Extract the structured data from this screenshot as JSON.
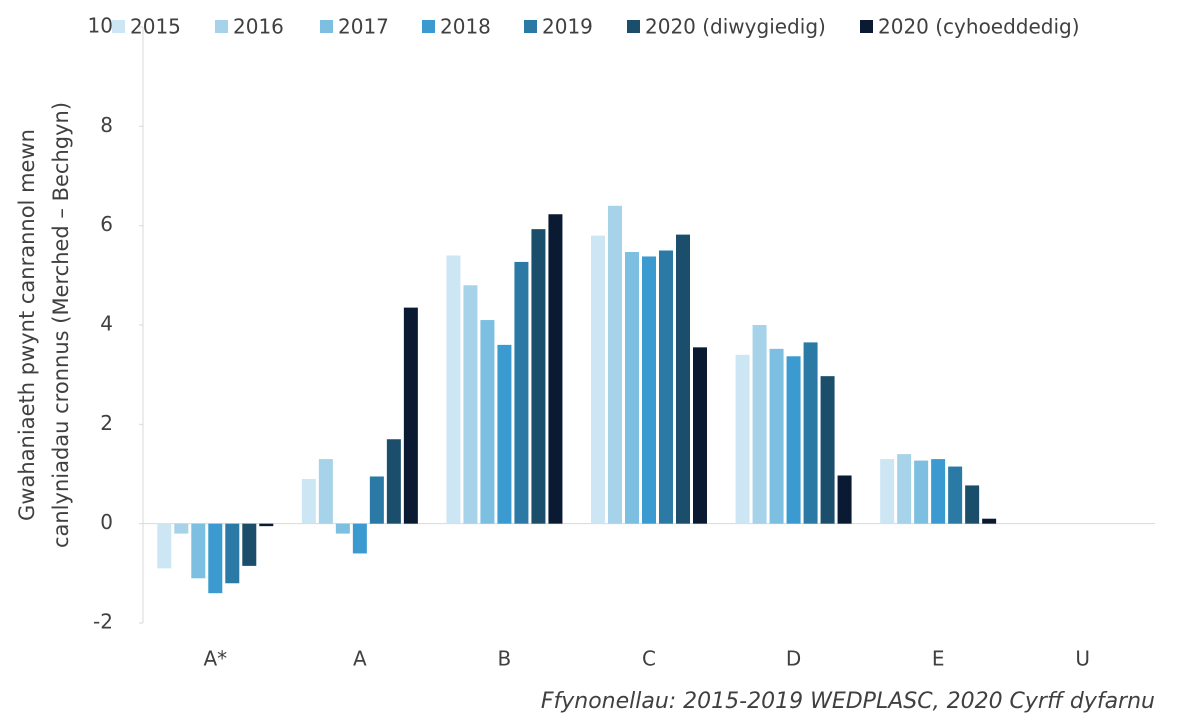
{
  "chart_data": {
    "type": "bar",
    "y_label": [
      "Gwahaniaeth pwynt canrannol mewn",
      "canlyniadau cronnus (Merched – Bechgyn)"
    ],
    "source": "Ffynonellau: 2015-2019 WEDPLASC, 2020 Cyrff dyfarnu",
    "categories": [
      "A*",
      "A",
      "B",
      "C",
      "D",
      "E",
      "U"
    ],
    "series": [
      {
        "name": "2015",
        "color": "#cde6f4",
        "values": [
          -0.9,
          0.9,
          5.4,
          5.8,
          3.4,
          1.3,
          0
        ]
      },
      {
        "name": "2016",
        "color": "#a6d3ea",
        "values": [
          -0.2,
          1.3,
          4.8,
          6.4,
          4.0,
          1.4,
          0
        ]
      },
      {
        "name": "2017",
        "color": "#7dbfe0",
        "values": [
          -1.1,
          -0.2,
          4.1,
          5.47,
          3.52,
          1.27,
          0
        ]
      },
      {
        "name": "2018",
        "color": "#3b9bd0",
        "values": [
          -1.4,
          -0.6,
          3.6,
          5.38,
          3.37,
          1.3,
          0
        ]
      },
      {
        "name": "2019",
        "color": "#2a7aa5",
        "values": [
          -1.2,
          0.95,
          5.27,
          5.5,
          3.65,
          1.15,
          0
        ]
      },
      {
        "name": "2020 (diwygiedig)",
        "color": "#1b4e6b",
        "values": [
          -0.85,
          1.7,
          5.93,
          5.82,
          2.97,
          0.77,
          0
        ]
      },
      {
        "name": "2020 (cyhoeddedig)",
        "color": "#0a1a33",
        "values": [
          -0.05,
          4.35,
          6.23,
          3.55,
          0.97,
          0.1,
          0
        ]
      }
    ],
    "ylim": [
      -2,
      10
    ],
    "yticks": [
      -2,
      0,
      2,
      4,
      6,
      8,
      10
    ],
    "legend": "top"
  }
}
